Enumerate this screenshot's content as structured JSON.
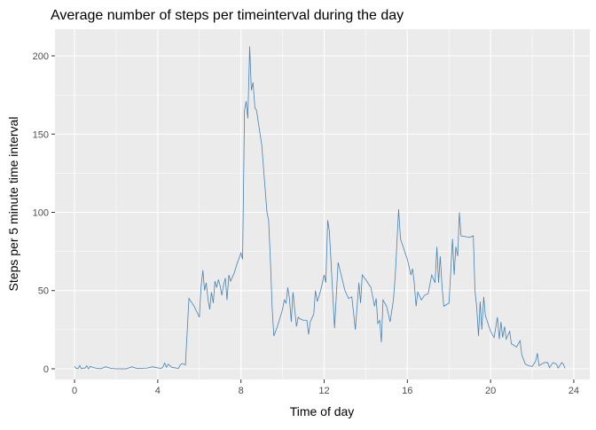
{
  "chart_data": {
    "type": "line",
    "title": "Average number of steps per timeinterval during the day",
    "x_label": "Time of day",
    "y_label": "Steps per 5 minute time interval",
    "color": "#4682b4",
    "grid": true,
    "xlim": [
      -0.94,
      24.77
    ],
    "ylim": [
      -6.8,
      217
    ],
    "xticks": [
      0,
      4,
      8,
      12,
      16,
      20,
      24
    ],
    "yticks": [
      0,
      50,
      100,
      150,
      200
    ],
    "x": [
      0,
      0.08,
      0.17,
      0.25,
      0.33,
      0.42,
      0.5,
      0.58,
      0.67,
      0.75,
      1,
      1.25,
      1.5,
      1.75,
      2,
      2.5,
      2.75,
      3,
      3.5,
      3.75,
      4,
      4.17,
      4.25,
      4.33,
      4.42,
      4.5,
      4.67,
      4.83,
      5,
      5.08,
      5.17,
      5.25,
      5.33,
      5.5,
      5.75,
      6,
      6.08,
      6.17,
      6.25,
      6.33,
      6.42,
      6.5,
      6.58,
      6.67,
      6.75,
      6.83,
      6.92,
      7,
      7.08,
      7.17,
      7.25,
      7.33,
      7.42,
      7.5,
      7.67,
      7.83,
      7.92,
      8,
      8.08,
      8.17,
      8.25,
      8.33,
      8.42,
      8.5,
      8.58,
      8.67,
      8.75,
      9,
      9.25,
      9.33,
      9.42,
      9.5,
      9.58,
      9.75,
      10,
      10.08,
      10.17,
      10.25,
      10.33,
      10.42,
      10.5,
      10.67,
      10.75,
      10.83,
      11,
      11.17,
      11.25,
      11.33,
      11.5,
      11.58,
      11.67,
      11.83,
      12,
      12.08,
      12.17,
      12.25,
      12.42,
      12.5,
      12.67,
      13,
      13.17,
      13.33,
      13.5,
      13.67,
      13.75,
      13.83,
      14,
      14.25,
      14.42,
      14.5,
      14.58,
      14.67,
      14.75,
      14.83,
      15,
      15.17,
      15.33,
      15.42,
      15.58,
      15.67,
      16,
      16.17,
      16.25,
      16.33,
      16.42,
      16.5,
      16.67,
      16.83,
      17,
      17.17,
      17.33,
      17.42,
      17.5,
      17.58,
      17.67,
      17.75,
      18,
      18.17,
      18.25,
      18.33,
      18.42,
      18.5,
      18.58,
      19,
      19.17,
      19.25,
      19.33,
      19.42,
      19.5,
      19.58,
      19.67,
      19.75,
      20,
      20.17,
      20.33,
      20.42,
      20.5,
      20.58,
      20.67,
      20.75,
      20.92,
      21,
      21.25,
      21.42,
      21.5,
      21.67,
      21.83,
      22,
      22.17,
      22.25,
      22.33,
      22.58,
      22.75,
      22.83,
      23,
      23.17,
      23.25,
      23.42,
      23.5,
      23.58
    ],
    "values": [
      1.7,
      0.3,
      0.1,
      2.1,
      0,
      0.5,
      0.4,
      2,
      0,
      1.5,
      0.5,
      0,
      1.3,
      0.3,
      0,
      0,
      1.3,
      0.2,
      0.5,
      1.3,
      0.6,
      0.3,
      1.2,
      3.6,
      1,
      3,
      1,
      0.6,
      0.3,
      2.5,
      3.3,
      3,
      2.5,
      45,
      40,
      33,
      52,
      63,
      50,
      55,
      44,
      38,
      49,
      42,
      56,
      52,
      57,
      53,
      47,
      54,
      58,
      44,
      60,
      56,
      61,
      68,
      71,
      74,
      70,
      165,
      171,
      160,
      206,
      178,
      183,
      167,
      165,
      143,
      100,
      95,
      68,
      39,
      21,
      27,
      38,
      44,
      42,
      52,
      45,
      30,
      49,
      27,
      33,
      32,
      31,
      31,
      22,
      30,
      35,
      50,
      43,
      50,
      60,
      55,
      95,
      88,
      46,
      26,
      68,
      50,
      45,
      46,
      25,
      55,
      42,
      60,
      57,
      52,
      40,
      45,
      29,
      31,
      17,
      44,
      40,
      30,
      44,
      60,
      102,
      83,
      70,
      60,
      64,
      55,
      40,
      49,
      44,
      47,
      48,
      60,
      55,
      78,
      55,
      72,
      52,
      40,
      42,
      83,
      60,
      78,
      72,
      100,
      85,
      84,
      85,
      50,
      40,
      21,
      43,
      25,
      46,
      34,
      24,
      20,
      33,
      19,
      30,
      20,
      27,
      19,
      24,
      16,
      14,
      18,
      9,
      3,
      2,
      1.5,
      5,
      10,
      2,
      4,
      4,
      0.7,
      4,
      3,
      0.5,
      4,
      3,
      0.3
    ]
  }
}
